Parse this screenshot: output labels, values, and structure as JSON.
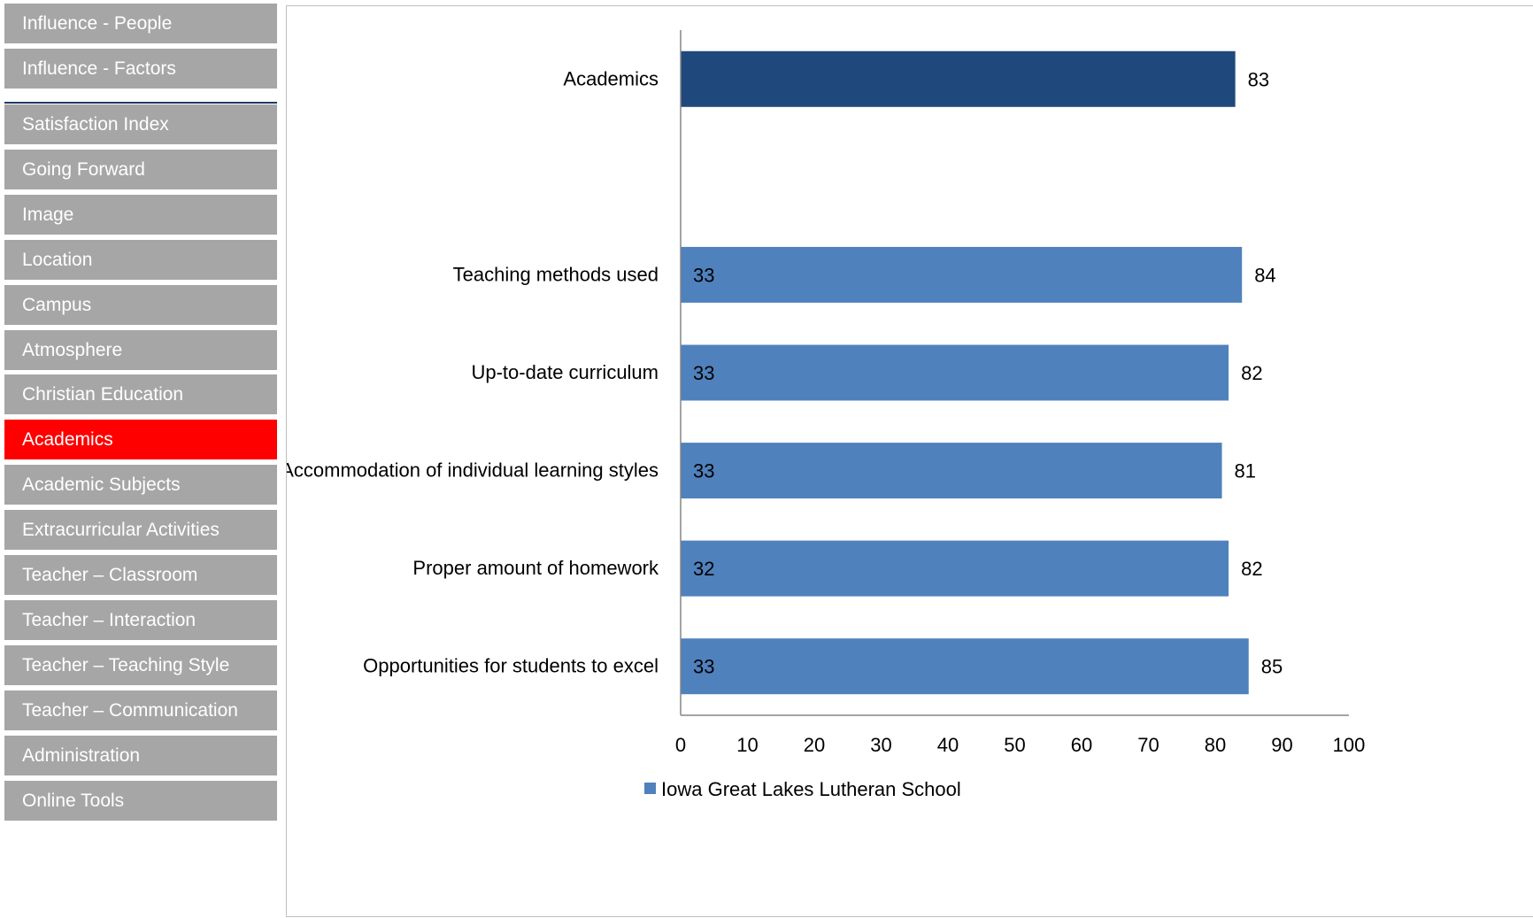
{
  "sidebar": {
    "top_items": [
      {
        "label": "Influence - People"
      },
      {
        "label": "Influence - Factors"
      }
    ],
    "items": [
      {
        "label": "Satisfaction Index"
      },
      {
        "label": "Going Forward"
      },
      {
        "label": "Image"
      },
      {
        "label": "Location"
      },
      {
        "label": "Campus"
      },
      {
        "label": "Atmosphere"
      },
      {
        "label": "Christian Education"
      },
      {
        "label": "Academics",
        "active": true
      },
      {
        "label": "Academic Subjects"
      },
      {
        "label": "Extracurricular Activities"
      },
      {
        "label": "Teacher – Classroom"
      },
      {
        "label": "Teacher – Interaction"
      },
      {
        "label": "Teacher – Teaching Style"
      },
      {
        "label": "Teacher – Communication"
      },
      {
        "label": "Administration"
      },
      {
        "label": "Online Tools"
      }
    ]
  },
  "colors": {
    "nav_bg": "#a6a6a6",
    "nav_active": "#ff0000",
    "summary_bar": "#1f497d",
    "detail_bar": "#4f81bd"
  },
  "chart_data": {
    "type": "bar",
    "orientation": "horizontal",
    "categories": [
      "Academics",
      "",
      "Teaching methods used",
      "Up-to-date curriculum",
      "Accommodation of individual learning styles",
      "Proper amount of homework",
      "Opportunities for students to excel"
    ],
    "series": [
      {
        "name": "Iowa Great Lakes Lutheran School",
        "values": [
          83,
          null,
          84,
          82,
          81,
          82,
          85
        ],
        "inner_labels": [
          null,
          null,
          "33",
          "33",
          "33",
          "32",
          "33"
        ]
      }
    ],
    "xlim": [
      0,
      100
    ],
    "xticks": [
      "0",
      "10",
      "20",
      "30",
      "40",
      "50",
      "60",
      "70",
      "80",
      "90",
      "100"
    ],
    "grid": false,
    "legend_position": "bottom"
  }
}
